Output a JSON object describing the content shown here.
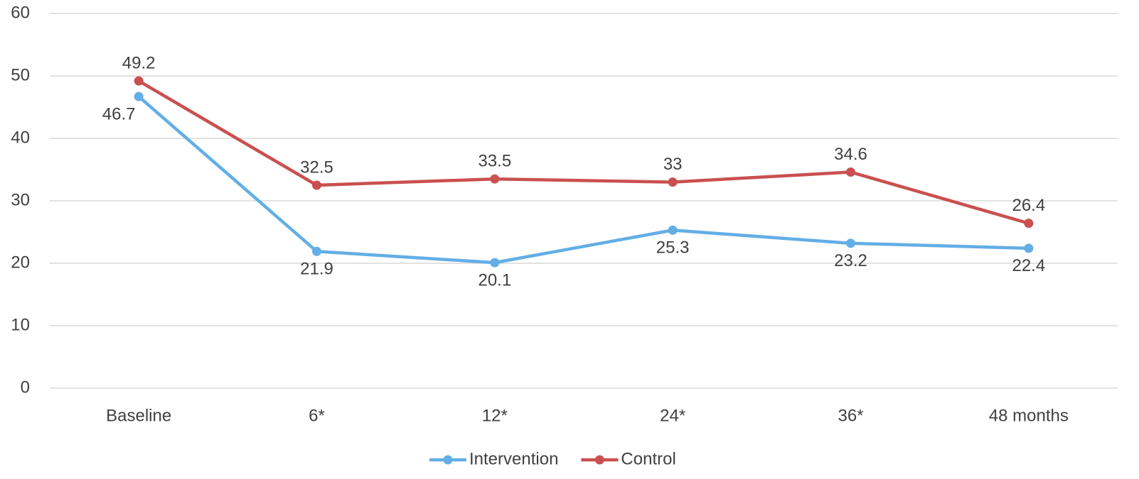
{
  "chart_data": {
    "type": "line",
    "categories": [
      "Baseline",
      "6*",
      "12*",
      "24*",
      "36*",
      "48 months"
    ],
    "series": [
      {
        "name": "Intervention",
        "color": "#63aee6",
        "values": [
          46.7,
          21.9,
          20.1,
          25.3,
          23.2,
          22.4
        ]
      },
      {
        "name": "Control",
        "color": "#c9504f",
        "values": [
          49.2,
          32.5,
          33.5,
          33,
          34.6,
          26.4
        ]
      }
    ],
    "ylim": [
      0,
      60
    ],
    "yticks": [
      0,
      10,
      20,
      30,
      40,
      50,
      60
    ],
    "grid": true,
    "legend": "bottom"
  }
}
